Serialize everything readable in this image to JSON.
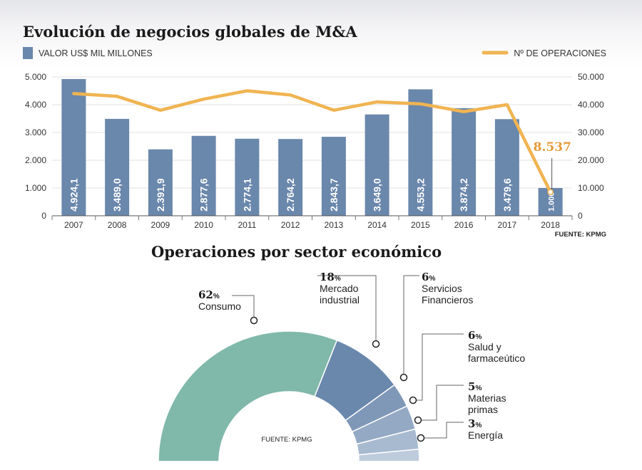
{
  "chart_data": [
    {
      "type": "bar",
      "title": "Evolución de negocios globales de M&A",
      "categories": [
        "2007",
        "2008",
        "2009",
        "2010",
        "2011",
        "2012",
        "2013",
        "2014",
        "2015",
        "2016",
        "2017",
        "2018"
      ],
      "series": [
        {
          "name": "VALOR US$ MIL MILLONES",
          "kind": "bar",
          "axis": "left",
          "values": [
            4924.1,
            3489.0,
            2391.9,
            2877.6,
            2774.1,
            2764.2,
            2843.7,
            3649.0,
            4553.2,
            3874.2,
            3479.6,
            1000
          ],
          "labels": [
            "4.924,1",
            "3.489,0",
            "2.391,9",
            "2.877,6",
            "2.774,1",
            "2.764,2",
            "2.843,7",
            "3.649,0",
            "4.553,2",
            "3.874,2",
            "3.479,6",
            "1.000"
          ]
        },
        {
          "name": "Nº DE OPERACIONES",
          "kind": "line",
          "axis": "right",
          "values": [
            44000,
            43000,
            38000,
            42000,
            45000,
            43500,
            38000,
            41000,
            40300,
            37500,
            40000,
            8537
          ],
          "highlight_label": "8.537"
        }
      ],
      "y_left": {
        "ylim": [
          0,
          5000
        ],
        "ticks": [
          0,
          1000,
          2000,
          3000,
          4000,
          5000
        ],
        "tick_labels": [
          "0",
          "1.000",
          "2.000",
          "3.000",
          "4.000",
          "5.000"
        ]
      },
      "y_right": {
        "ylim": [
          0,
          50000
        ],
        "ticks": [
          0,
          10000,
          20000,
          30000,
          40000,
          50000
        ],
        "tick_labels": [
          "0",
          "10.000",
          "20.000",
          "30.000",
          "40.000",
          "50.000"
        ]
      },
      "source": "FUENTE: KPMG",
      "colors": {
        "bar": "#6a87ac",
        "line": "#f0b452",
        "highlight": "#e59a3a"
      }
    },
    {
      "type": "pie",
      "title": "Operaciones por sector económico",
      "style": "half-donut",
      "slices": [
        {
          "value": 62,
          "pct": "62",
          "label": [
            "Consumo"
          ],
          "color": "#80b8aa"
        },
        {
          "value": 18,
          "pct": "18",
          "label": [
            "Mercado",
            "industrial"
          ],
          "color": "#6a87ac"
        },
        {
          "value": 6,
          "pct": "6",
          "label": [
            "Servicios",
            "Financieros"
          ],
          "color": "#7f98b8"
        },
        {
          "value": 6,
          "pct": "6",
          "label": [
            "Salud y",
            "farmaceútico"
          ],
          "color": "#93a9c4"
        },
        {
          "value": 5,
          "pct": "5",
          "label": [
            "Materias",
            "primas"
          ],
          "color": "#a8bad0"
        },
        {
          "value": 3,
          "pct": "3",
          "label": [
            "Energía"
          ],
          "color": "#becbdc"
        }
      ],
      "pct_suffix": "%",
      "source": "FUENTE: KPMG"
    }
  ]
}
